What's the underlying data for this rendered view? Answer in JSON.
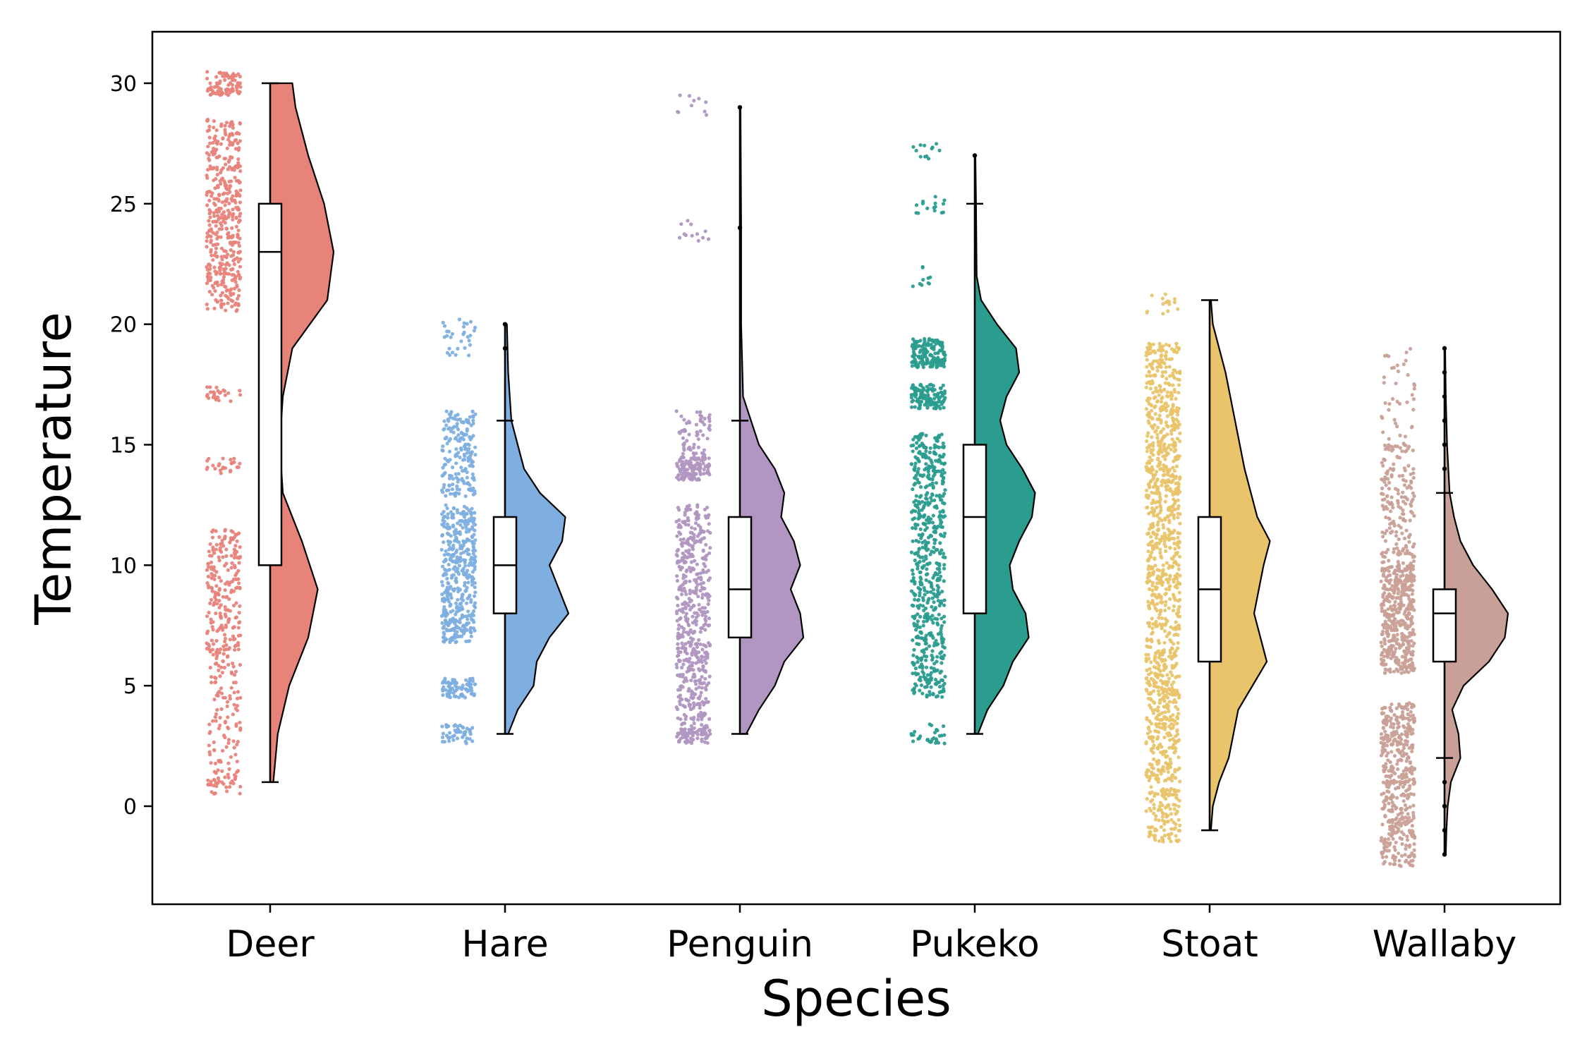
{
  "chart_data": {
    "type": "raincloud",
    "xlabel": "Species",
    "ylabel": "Temperature",
    "ylim": [
      -4.2,
      32.0
    ],
    "yticks": [
      0,
      5,
      10,
      15,
      20,
      25,
      30
    ],
    "grid": false,
    "categories": [
      "Deer",
      "Hare",
      "Penguin",
      "Pukeko",
      "Stoat",
      "Wallaby"
    ],
    "colors": [
      "#e8837a",
      "#7eafe0",
      "#b096c0",
      "#2a9d8f",
      "#e9c46a",
      "#c9a097"
    ],
    "boxes": [
      {
        "whisker_low": 1,
        "q1": 10,
        "median": 23,
        "q3": 25,
        "whisker_high": 30,
        "outliers": []
      },
      {
        "whisker_low": 3,
        "q1": 8,
        "median": 10,
        "q3": 12,
        "whisker_high": 16,
        "outliers": [
          19,
          20
        ]
      },
      {
        "whisker_low": 3,
        "q1": 7,
        "median": 9,
        "q3": 12,
        "whisker_high": 16,
        "outliers": [
          24,
          29
        ]
      },
      {
        "whisker_low": 3,
        "q1": 8,
        "median": 12,
        "q3": 15,
        "whisker_high": 25,
        "outliers": [
          27
        ]
      },
      {
        "whisker_low": -1,
        "q1": 6,
        "median": 9,
        "q3": 12,
        "whisker_high": 21,
        "outliers": []
      },
      {
        "whisker_low": 2,
        "q1": 6,
        "median": 8,
        "q3": 9,
        "whisker_high": 13,
        "outliers": [
          -2,
          -1,
          0,
          1,
          14,
          15,
          16,
          17,
          18,
          19
        ]
      }
    ],
    "densities": [
      [
        [
          1,
          0.05
        ],
        [
          3,
          0.12
        ],
        [
          5,
          0.3
        ],
        [
          7,
          0.6
        ],
        [
          9,
          0.75
        ],
        [
          11,
          0.5
        ],
        [
          13,
          0.2
        ],
        [
          15,
          0.15
        ],
        [
          17,
          0.2
        ],
        [
          19,
          0.35
        ],
        [
          21,
          0.9
        ],
        [
          23,
          1.0
        ],
        [
          25,
          0.85
        ],
        [
          27,
          0.6
        ],
        [
          29,
          0.4
        ],
        [
          30,
          0.35
        ]
      ],
      [
        [
          3,
          0.05
        ],
        [
          4,
          0.2
        ],
        [
          5,
          0.45
        ],
        [
          6,
          0.5
        ],
        [
          7,
          0.7
        ],
        [
          8,
          1.0
        ],
        [
          9,
          0.85
        ],
        [
          10,
          0.7
        ],
        [
          11,
          0.9
        ],
        [
          12,
          0.95
        ],
        [
          13,
          0.55
        ],
        [
          14,
          0.3
        ],
        [
          15,
          0.2
        ],
        [
          16,
          0.1
        ],
        [
          18,
          0.05
        ],
        [
          20,
          0.03
        ]
      ],
      [
        [
          3,
          0.1
        ],
        [
          4,
          0.3
        ],
        [
          5,
          0.55
        ],
        [
          6,
          0.7
        ],
        [
          7,
          1.0
        ],
        [
          8,
          0.95
        ],
        [
          9,
          0.8
        ],
        [
          10,
          0.95
        ],
        [
          11,
          0.85
        ],
        [
          12,
          0.65
        ],
        [
          13,
          0.7
        ],
        [
          14,
          0.55
        ],
        [
          15,
          0.3
        ],
        [
          17,
          0.05
        ],
        [
          20,
          0.02
        ],
        [
          24,
          0.02
        ],
        [
          29,
          0.01
        ]
      ],
      [
        [
          3,
          0.05
        ],
        [
          4,
          0.2
        ],
        [
          5,
          0.45
        ],
        [
          6,
          0.6
        ],
        [
          7,
          0.85
        ],
        [
          8,
          0.8
        ],
        [
          9,
          0.6
        ],
        [
          10,
          0.55
        ],
        [
          11,
          0.7
        ],
        [
          12,
          0.9
        ],
        [
          13,
          0.95
        ],
        [
          14,
          0.75
        ],
        [
          15,
          0.5
        ],
        [
          16,
          0.4
        ],
        [
          17,
          0.5
        ],
        [
          18,
          0.7
        ],
        [
          19,
          0.65
        ],
        [
          20,
          0.35
        ],
        [
          21,
          0.1
        ],
        [
          22,
          0.03
        ],
        [
          25,
          0.02
        ],
        [
          27,
          0.01
        ]
      ],
      [
        [
          -1,
          0.02
        ],
        [
          0,
          0.05
        ],
        [
          1,
          0.15
        ],
        [
          2,
          0.3
        ],
        [
          4,
          0.45
        ],
        [
          6,
          0.9
        ],
        [
          8,
          0.7
        ],
        [
          10,
          0.85
        ],
        [
          11,
          0.95
        ],
        [
          12,
          0.75
        ],
        [
          14,
          0.55
        ],
        [
          16,
          0.4
        ],
        [
          18,
          0.25
        ],
        [
          19,
          0.15
        ],
        [
          20,
          0.05
        ],
        [
          21,
          0.02
        ]
      ],
      [
        [
          -2,
          0.02
        ],
        [
          -1,
          0.03
        ],
        [
          0,
          0.05
        ],
        [
          1,
          0.1
        ],
        [
          2,
          0.25
        ],
        [
          3,
          0.22
        ],
        [
          4,
          0.12
        ],
        [
          5,
          0.3
        ],
        [
          6,
          0.7
        ],
        [
          7,
          0.95
        ],
        [
          8,
          1.0
        ],
        [
          9,
          0.75
        ],
        [
          10,
          0.45
        ],
        [
          11,
          0.25
        ],
        [
          12,
          0.15
        ],
        [
          13,
          0.08
        ],
        [
          15,
          0.04
        ],
        [
          17,
          0.02
        ],
        [
          19,
          0.01
        ]
      ]
    ],
    "point_bands": [
      [
        [
          0.5,
          1.5,
          40
        ],
        [
          1.5,
          4.5,
          60
        ],
        [
          4.5,
          11.5,
          260
        ],
        [
          13.8,
          14.5,
          25
        ],
        [
          16.8,
          17.4,
          25
        ],
        [
          20.5,
          28.5,
          420
        ],
        [
          29.5,
          30.5,
          90
        ]
      ],
      [
        [
          2.6,
          3.4,
          50
        ],
        [
          4.5,
          5.3,
          80
        ],
        [
          6.8,
          12.5,
          420
        ],
        [
          12.8,
          16.4,
          180
        ],
        [
          18.7,
          20.2,
          30
        ]
      ],
      [
        [
          2.6,
          3.2,
          60
        ],
        [
          3,
          12.5,
          520
        ],
        [
          13.5,
          14.5,
          120
        ],
        [
          14.5,
          16.4,
          60
        ],
        [
          23.4,
          24.5,
          12
        ],
        [
          28.6,
          29.5,
          10
        ]
      ],
      [
        [
          2.6,
          3.4,
          30
        ],
        [
          4.5,
          15.5,
          600
        ],
        [
          16.5,
          17.5,
          120
        ],
        [
          18.2,
          19.4,
          160
        ],
        [
          21.5,
          22.4,
          10
        ],
        [
          24.5,
          25.3,
          15
        ],
        [
          26.8,
          27.5,
          12
        ]
      ],
      [
        [
          -1.5,
          0.8,
          120
        ],
        [
          1,
          19.2,
          1100
        ],
        [
          20.4,
          21.3,
          15
        ]
      ],
      [
        [
          -2.5,
          4.3,
          450
        ],
        [
          5.5,
          10,
          420
        ],
        [
          10,
          15,
          180
        ],
        [
          15,
          19,
          40
        ]
      ]
    ]
  }
}
